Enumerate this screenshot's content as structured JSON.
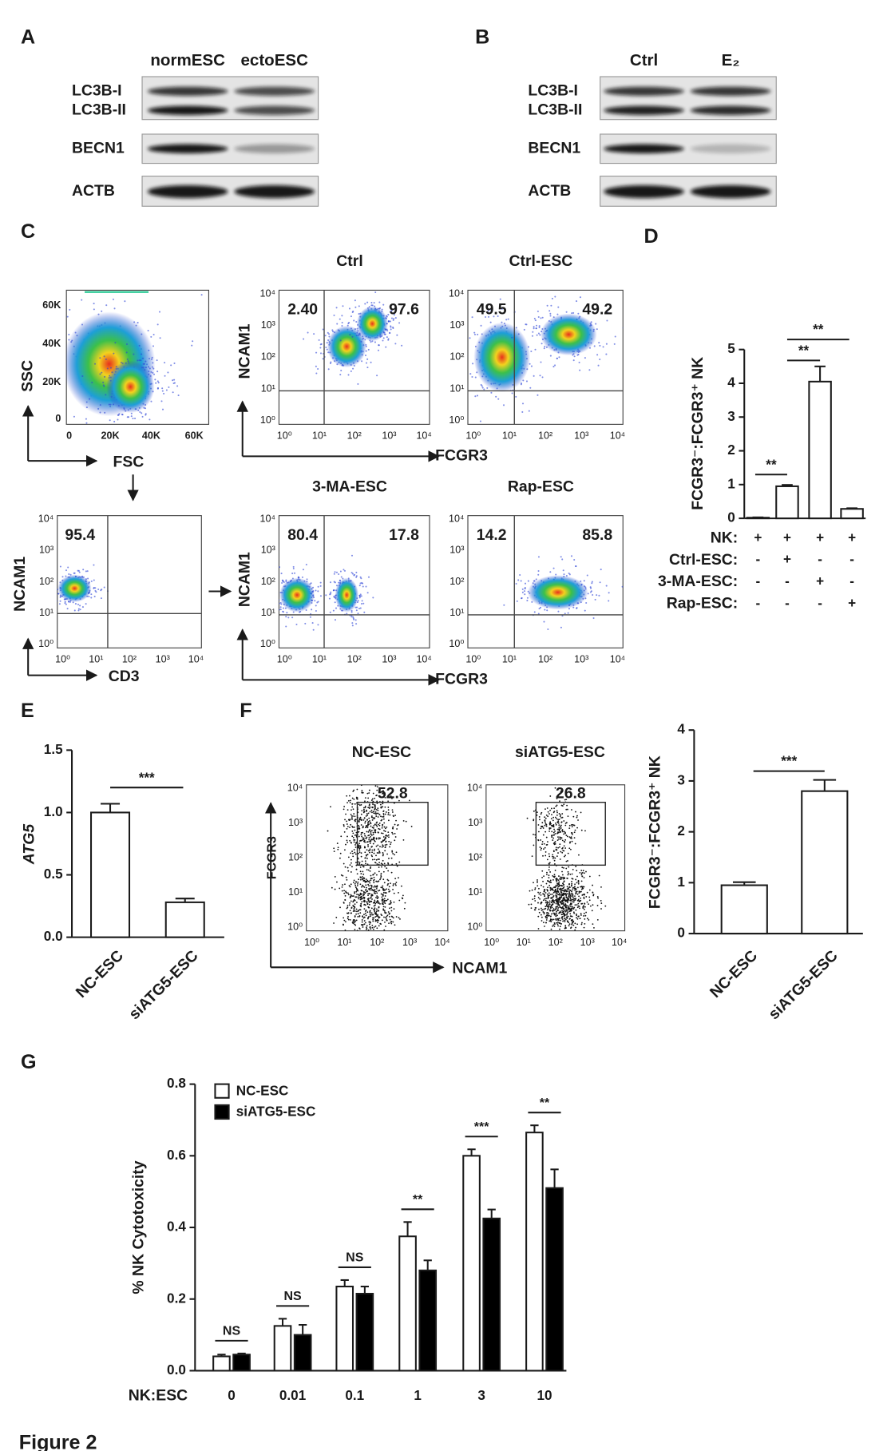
{
  "panel_labels": [
    "A",
    "B",
    "C",
    "D",
    "E",
    "F",
    "G"
  ],
  "figure_label": "Figure 2",
  "blots": [
    {
      "columns": [
        "normESC",
        "ectoESC"
      ],
      "rows": [
        "LC3B-I",
        "LC3B-II",
        "BECN1",
        "ACTB"
      ]
    },
    {
      "columns": [
        "Ctrl",
        "E₂"
      ],
      "rows": [
        "LC3B-I",
        "LC3B-II",
        "BECN1",
        "ACTB"
      ]
    }
  ],
  "gating": {
    "y_label": "SSC",
    "x_label": "FSC",
    "yticks": [
      "60K",
      "40K",
      "20K",
      "0"
    ],
    "xticks": [
      "0",
      "20K",
      "40K",
      "60K"
    ]
  },
  "cd3_plot": {
    "y_label": "NCAM1",
    "x_label": "CD3",
    "quadrant_value": "95.4"
  },
  "flow_decades": [
    "10⁰",
    "10¹",
    "10²",
    "10³",
    "10⁴"
  ],
  "flow_c": {
    "y_label": "NCAM1",
    "x_label": "FCGR3",
    "plots": [
      {
        "title": "Ctrl",
        "left": "2.40",
        "right": "97.6"
      },
      {
        "title": "Ctrl-ESC",
        "left": "49.5",
        "right": "49.2"
      },
      {
        "title": "3-MA-ESC",
        "left": "80.4",
        "right": "17.8"
      },
      {
        "title": "Rap-ESC",
        "left": "14.2",
        "right": "85.8"
      }
    ]
  },
  "flow_f": {
    "y_label": "FCGR3",
    "x_label": "NCAM1",
    "plots": [
      {
        "title": "NC-ESC",
        "gate": "52.8"
      },
      {
        "title": "siATG5-ESC",
        "gate": "26.8"
      }
    ]
  },
  "chart_data": [
    {
      "type": "bar",
      "y_label": "FCGR3⁻:FCGR3⁺ NK",
      "color": "#ffffff",
      "values": [
        0.02,
        0.95,
        4.05,
        0.28
      ],
      "errors": [
        0.01,
        0.04,
        0.45,
        0.02
      ],
      "ylim": [
        0,
        5
      ],
      "yticks": [
        0,
        1,
        2,
        3,
        4,
        5
      ],
      "conditions": [
        {
          "label": "NK:",
          "signs": [
            "+",
            "+",
            "+",
            "+"
          ]
        },
        {
          "label": "Ctrl-ESC:",
          "signs": [
            "-",
            "+",
            "-",
            "-"
          ]
        },
        {
          "label": "3-MA-ESC:",
          "signs": [
            "-",
            "-",
            "+",
            "-"
          ]
        },
        {
          "label": "Rap-ESC:",
          "signs": [
            "-",
            "-",
            "-",
            "+"
          ]
        }
      ],
      "annotations": [
        "**",
        "**",
        "**"
      ]
    },
    {
      "type": "bar",
      "y_label": "ATG5",
      "color": "#ffffff",
      "categories": [
        "NC-ESC",
        "siATG5-ESC"
      ],
      "values": [
        1.0,
        0.28
      ],
      "errors": [
        0.07,
        0.03
      ],
      "ylim": [
        0,
        1.5
      ],
      "yticks": [
        {
          "value": 0,
          "label": "0.0"
        },
        0.5,
        {
          "value": 1,
          "label": "1.0"
        },
        1.5
      ],
      "annotations": [
        "***"
      ]
    },
    {
      "type": "bar",
      "y_label": "FCGR3⁻:FCGR3⁺ NK",
      "color": "#ffffff",
      "categories": [
        "NC-ESC",
        "siATG5-ESC"
      ],
      "values": [
        0.95,
        2.8
      ],
      "errors": [
        0.06,
        0.22
      ],
      "ylim": [
        0,
        4
      ],
      "yticks": [
        0,
        1,
        2,
        3,
        4
      ],
      "annotations": [
        "***"
      ]
    },
    {
      "type": "bar",
      "y_label": "% NK Cytotoxicity",
      "x_label": "NK:ESC",
      "categories": [
        "0",
        "0.01",
        "0.1",
        "1",
        "3",
        "10"
      ],
      "series": [
        {
          "name": "NC-ESC",
          "color": "#ffffff",
          "values": [
            0.04,
            0.125,
            0.235,
            0.375,
            0.6,
            0.665
          ],
          "errors": [
            0.005,
            0.02,
            0.018,
            0.04,
            0.018,
            0.02
          ]
        },
        {
          "name": "siATG5-ESC",
          "color": "#000000",
          "values": [
            0.045,
            0.1,
            0.215,
            0.28,
            0.425,
            0.51
          ],
          "errors": [
            0.003,
            0.028,
            0.02,
            0.028,
            0.025,
            0.052
          ]
        }
      ],
      "ylim": [
        0,
        0.8
      ],
      "yticks": [
        {
          "value": 0,
          "label": "0.0"
        },
        0.2,
        0.4,
        0.6,
        0.8
      ],
      "annotations": [
        "NS",
        "NS",
        "NS",
        "**",
        "***",
        "**"
      ]
    }
  ]
}
